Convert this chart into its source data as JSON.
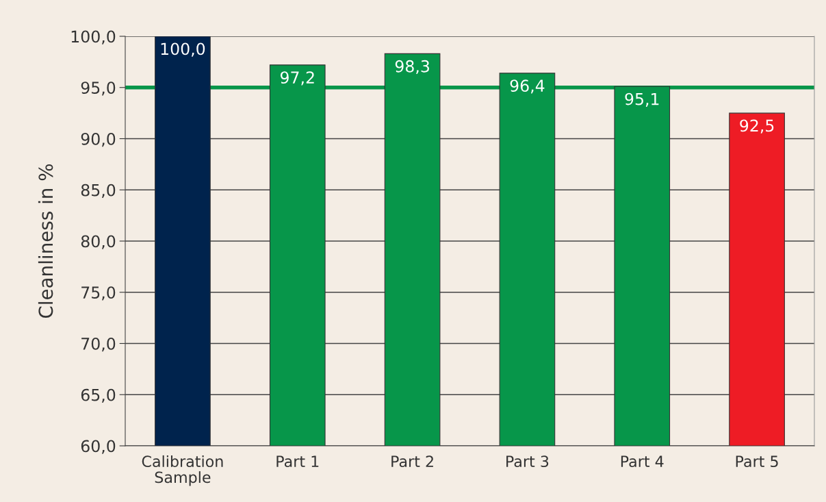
{
  "chart_data": {
    "type": "bar",
    "ylabel": "Cleanliness in %",
    "categories": [
      "Calibration\nSample",
      "Part 1",
      "Part 2",
      "Part 3",
      "Part 4",
      "Part 5"
    ],
    "values": [
      100.0,
      97.2,
      98.3,
      96.4,
      95.1,
      92.5
    ],
    "colors": [
      "#00234d",
      "#07964a",
      "#07964a",
      "#07964a",
      "#07964a",
      "#ee1c25"
    ],
    "value_labels": [
      "100,0",
      "97,2",
      "98,3",
      "96,4",
      "95,1",
      "92,5"
    ],
    "ylim": [
      60,
      100
    ],
    "yticks": [
      {
        "value": 60,
        "label": "60,0"
      },
      {
        "value": 65,
        "label": "65,0"
      },
      {
        "value": 70,
        "label": "70,0"
      },
      {
        "value": 75,
        "label": "75,0"
      },
      {
        "value": 80,
        "label": "80,0"
      },
      {
        "value": 85,
        "label": "85,0"
      },
      {
        "value": 90,
        "label": "90,0"
      },
      {
        "value": 95,
        "label": "95,0"
      },
      {
        "value": 100,
        "label": "100,0"
      }
    ],
    "ref_lines": [
      {
        "axis": "y",
        "value": 95,
        "color": "#07964a"
      }
    ],
    "grid": "y",
    "legend": false
  }
}
